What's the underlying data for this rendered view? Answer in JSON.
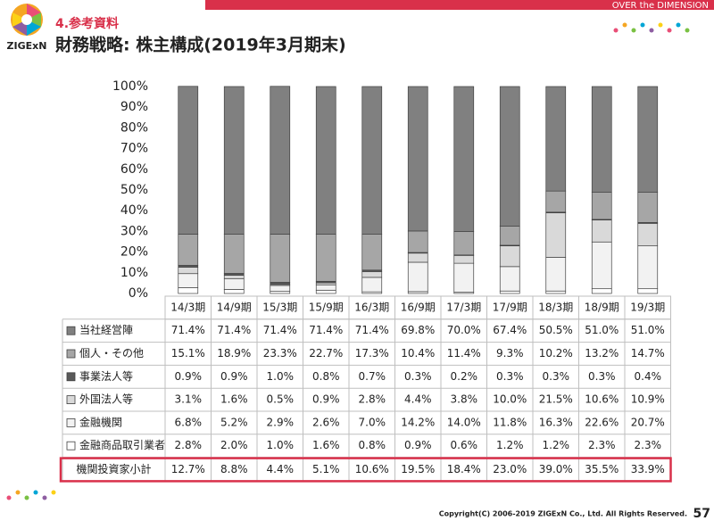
{
  "header": {
    "logo": "ZIGExN",
    "section": "4.参考資料",
    "title": "財務戦略: 株主構成(2019年3月期末)",
    "tagline": "OVER the DIMENSION"
  },
  "chart_data": {
    "type": "stacked_bar",
    "categories": [
      "14/3期",
      "14/9期",
      "15/3期",
      "15/9期",
      "16/3期",
      "16/9期",
      "17/3期",
      "17/9期",
      "18/3期",
      "18/9期",
      "19/3期"
    ],
    "ylim": [
      0,
      100
    ],
    "yticks": [
      {
        "value": 0,
        "label": "0%"
      },
      {
        "value": 10,
        "label": "10%"
      },
      {
        "value": 20,
        "label": "20%"
      },
      {
        "value": 30,
        "label": "30%"
      },
      {
        "value": 40,
        "label": "40%"
      },
      {
        "value": 50,
        "label": "50%"
      },
      {
        "value": 60,
        "label": "60%"
      },
      {
        "value": 70,
        "label": "70%"
      },
      {
        "value": 80,
        "label": "80%"
      },
      {
        "value": 90,
        "label": "90%"
      },
      {
        "value": 100,
        "label": "100%"
      }
    ],
    "series": [
      {
        "name": "当社経営陣",
        "color": "#808080",
        "values": [
          71.4,
          71.4,
          71.4,
          71.4,
          71.4,
          69.8,
          70.0,
          67.4,
          50.5,
          51.0,
          51.0
        ],
        "value_labels": [
          "71.4%",
          "71.4%",
          "71.4%",
          "71.4%",
          "71.4%",
          "69.8%",
          "70.0%",
          "67.4%",
          "50.5%",
          "51.0%",
          "51.0%"
        ]
      },
      {
        "name": "個人・その他",
        "color": "#a6a6a6",
        "values": [
          15.1,
          18.9,
          23.3,
          22.7,
          17.3,
          10.4,
          11.4,
          9.3,
          10.2,
          13.2,
          14.7
        ],
        "value_labels": [
          "15.1%",
          "18.9%",
          "23.3%",
          "22.7%",
          "17.3%",
          "10.4%",
          "11.4%",
          "9.3%",
          "10.2%",
          "13.2%",
          "14.7%"
        ]
      },
      {
        "name": "事業法人等",
        "color": "#595959",
        "values": [
          0.9,
          0.9,
          1.0,
          0.8,
          0.7,
          0.3,
          0.2,
          0.3,
          0.3,
          0.3,
          0.4
        ],
        "value_labels": [
          "0.9%",
          "0.9%",
          "1.0%",
          "0.8%",
          "0.7%",
          "0.3%",
          "0.2%",
          "0.3%",
          "0.3%",
          "0.3%",
          "0.4%"
        ]
      },
      {
        "name": "外国法人等",
        "color": "#d9d9d9",
        "values": [
          3.1,
          1.6,
          0.5,
          0.9,
          2.8,
          4.4,
          3.8,
          10.0,
          21.5,
          10.6,
          10.9
        ],
        "value_labels": [
          "3.1%",
          "1.6%",
          "0.5%",
          "0.9%",
          "2.8%",
          "4.4%",
          "3.8%",
          "10.0%",
          "21.5%",
          "10.6%",
          "10.9%"
        ]
      },
      {
        "name": "金融機関",
        "color": "#f2f2f2",
        "values": [
          6.8,
          5.2,
          2.9,
          2.6,
          7.0,
          14.2,
          14.0,
          11.8,
          16.3,
          22.6,
          20.7
        ],
        "value_labels": [
          "6.8%",
          "5.2%",
          "2.9%",
          "2.6%",
          "7.0%",
          "14.2%",
          "14.0%",
          "11.8%",
          "16.3%",
          "22.6%",
          "20.7%"
        ]
      },
      {
        "name": "金融商品取引業者",
        "color": "#ffffff",
        "values": [
          2.8,
          2.0,
          1.0,
          1.6,
          0.8,
          0.9,
          0.6,
          1.2,
          1.2,
          2.3,
          2.3
        ],
        "value_labels": [
          "2.8%",
          "2.0%",
          "1.0%",
          "1.6%",
          "0.8%",
          "0.9%",
          "0.6%",
          "1.2%",
          "1.2%",
          "2.3%",
          "2.3%"
        ]
      }
    ],
    "subtotal": {
      "name": "機関投資家小計",
      "values": [
        12.7,
        8.8,
        4.4,
        5.1,
        10.6,
        19.5,
        18.4,
        23.0,
        39.0,
        35.5,
        33.9
      ],
      "value_labels": [
        "12.7%",
        "8.8%",
        "4.4%",
        "5.1%",
        "10.6%",
        "19.5%",
        "18.4%",
        "23.0%",
        "39.0%",
        "35.5%",
        "33.9%"
      ],
      "color": "#d9304a"
    }
  },
  "footer": {
    "copyright": "Copyright(C) 2006-2019 ZIGExN Co., Ltd. All Rights Reserved.",
    "page": "57"
  }
}
